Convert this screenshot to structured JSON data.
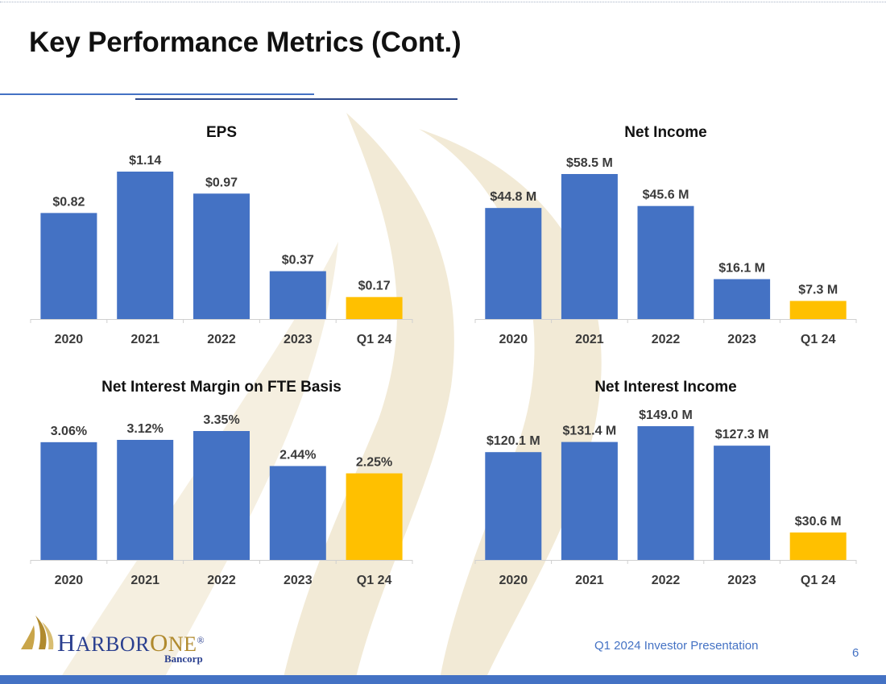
{
  "title": "Key Performance Metrics (Cont.)",
  "footer": {
    "presentation": "Q1 2024 Investor Presentation",
    "page_number": "6"
  },
  "logo": {
    "name": "HarborOne",
    "wordmark_lead": "H",
    "wordmark_rest": "ARBOR",
    "wordmark_lead2": "O",
    "wordmark_rest2": "NE",
    "registered": "®",
    "sub": "Bancorp"
  },
  "colors": {
    "bar_primary": "#4472c4",
    "bar_highlight": "#ffc000",
    "watermark": "#f2ead6"
  },
  "chart_data": [
    {
      "id": "eps",
      "type": "bar",
      "title": "EPS",
      "categories": [
        "2020",
        "2021",
        "2022",
        "2023",
        "Q1 24"
      ],
      "values": [
        0.82,
        1.14,
        0.97,
        0.37,
        0.17
      ],
      "labels": [
        "$0.82",
        "$1.14",
        "$0.97",
        "$0.37",
        "$0.17"
      ],
      "highlight_index": 4,
      "ylim": [
        0,
        1.14
      ],
      "xlabel": "",
      "ylabel": ""
    },
    {
      "id": "net-income",
      "type": "bar",
      "title": "Net Income",
      "categories": [
        "2020",
        "2021",
        "2022",
        "2023",
        "Q1 24"
      ],
      "values": [
        44.8,
        58.5,
        45.6,
        16.1,
        7.3
      ],
      "labels": [
        "$44.8 M",
        "$58.5 M",
        "$45.6 M",
        "$16.1 M",
        "$7.3 M"
      ],
      "highlight_index": 4,
      "ylim": [
        0,
        58.5
      ],
      "xlabel": "",
      "ylabel": ""
    },
    {
      "id": "nim",
      "type": "bar",
      "title": "Net Interest Margin on FTE Basis",
      "categories": [
        "2020",
        "2021",
        "2022",
        "2023",
        "Q1 24"
      ],
      "values": [
        3.06,
        3.12,
        3.35,
        2.44,
        2.25
      ],
      "labels": [
        "3.06%",
        "3.12%",
        "3.35%",
        "2.44%",
        "2.25%"
      ],
      "highlight_index": 4,
      "ylim": [
        0,
        3.35
      ],
      "xlabel": "",
      "ylabel": ""
    },
    {
      "id": "nii",
      "type": "bar",
      "title": "Net Interest Income",
      "categories": [
        "2020",
        "2021",
        "2022",
        "2023",
        "Q1 24"
      ],
      "values": [
        120.1,
        131.4,
        149.0,
        127.3,
        30.6
      ],
      "labels": [
        "$120.1 M",
        "$131.4 M",
        "$149.0 M",
        "$127.3 M",
        "$30.6 M"
      ],
      "highlight_index": 4,
      "ylim": [
        0,
        149.0
      ],
      "xlabel": "",
      "ylabel": ""
    }
  ]
}
